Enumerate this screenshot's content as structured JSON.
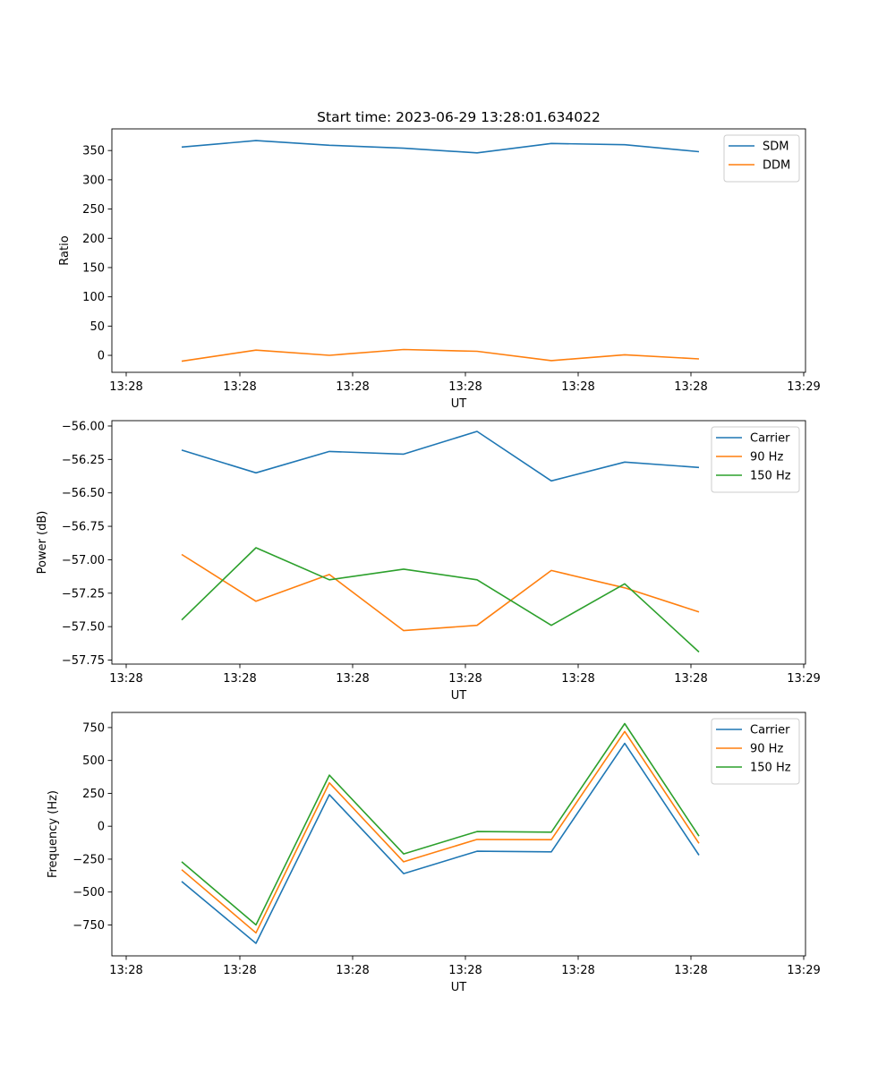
{
  "title": "Start time: 2023-06-29 13:28:01.634022",
  "colors": {
    "c0": "#1f77b4",
    "c1": "#ff7f0e",
    "c2": "#2ca02c"
  },
  "chart_data": [
    {
      "type": "line",
      "title": "Start time: 2023-06-29 13:28:01.634022",
      "xlabel": "UT",
      "ylabel": "Ratio",
      "x_ticks": [
        "13:28",
        "13:28",
        "13:28",
        "13:28",
        "13:28",
        "13:28",
        "13:29"
      ],
      "y_ticks": [
        0,
        50,
        100,
        150,
        200,
        250,
        300,
        350
      ],
      "ylim": [
        -29,
        387
      ],
      "legend_loc": "upper right",
      "grid": false,
      "series": [
        {
          "name": "SDM",
          "color": "#1f77b4",
          "values": [
            356,
            367,
            359,
            354,
            346,
            362,
            360,
            348
          ]
        },
        {
          "name": "DDM",
          "color": "#ff7f0e",
          "values": [
            -10,
            9,
            0,
            10,
            7,
            -9,
            1,
            -6
          ]
        }
      ]
    },
    {
      "type": "line",
      "xlabel": "UT",
      "ylabel": "Power (dB)",
      "x_ticks": [
        "13:28",
        "13:28",
        "13:28",
        "13:28",
        "13:28",
        "13:28",
        "13:29"
      ],
      "y_ticks": [
        -56.0,
        -56.25,
        -56.5,
        -56.75,
        -57.0,
        -57.25,
        -57.5,
        -57.75
      ],
      "ylim": [
        -57.78,
        -55.96
      ],
      "legend_loc": "upper right",
      "grid": false,
      "series": [
        {
          "name": "Carrier",
          "color": "#1f77b4",
          "values": [
            -56.18,
            -56.35,
            -56.19,
            -56.21,
            -56.04,
            -56.41,
            -56.27,
            -56.31
          ]
        },
        {
          "name": "90 Hz",
          "color": "#ff7f0e",
          "values": [
            -56.96,
            -57.31,
            -57.11,
            -57.53,
            -57.49,
            -57.08,
            -57.21,
            -57.39
          ]
        },
        {
          "name": "150 Hz",
          "color": "#2ca02c",
          "values": [
            -57.45,
            -56.91,
            -57.15,
            -57.07,
            -57.15,
            -57.49,
            -57.18,
            -57.69
          ]
        }
      ]
    },
    {
      "type": "line",
      "xlabel": "UT",
      "ylabel": "Frequency (Hz)",
      "x_ticks": [
        "13:28",
        "13:28",
        "13:28",
        "13:28",
        "13:28",
        "13:28",
        "13:29"
      ],
      "y_ticks": [
        750,
        500,
        250,
        0,
        -250,
        -500,
        -750
      ],
      "ylim": [
        -985,
        865
      ],
      "legend_loc": "upper right",
      "grid": false,
      "series": [
        {
          "name": "Carrier",
          "color": "#1f77b4",
          "values": [
            -420,
            -890,
            240,
            -360,
            -190,
            -195,
            630,
            -220
          ]
        },
        {
          "name": "90 Hz",
          "color": "#ff7f0e",
          "values": [
            -330,
            -810,
            330,
            -270,
            -100,
            -102,
            720,
            -130
          ]
        },
        {
          "name": "150 Hz",
          "color": "#2ca02c",
          "values": [
            -270,
            -750,
            388,
            -210,
            -40,
            -45,
            780,
            -75
          ]
        }
      ]
    }
  ]
}
